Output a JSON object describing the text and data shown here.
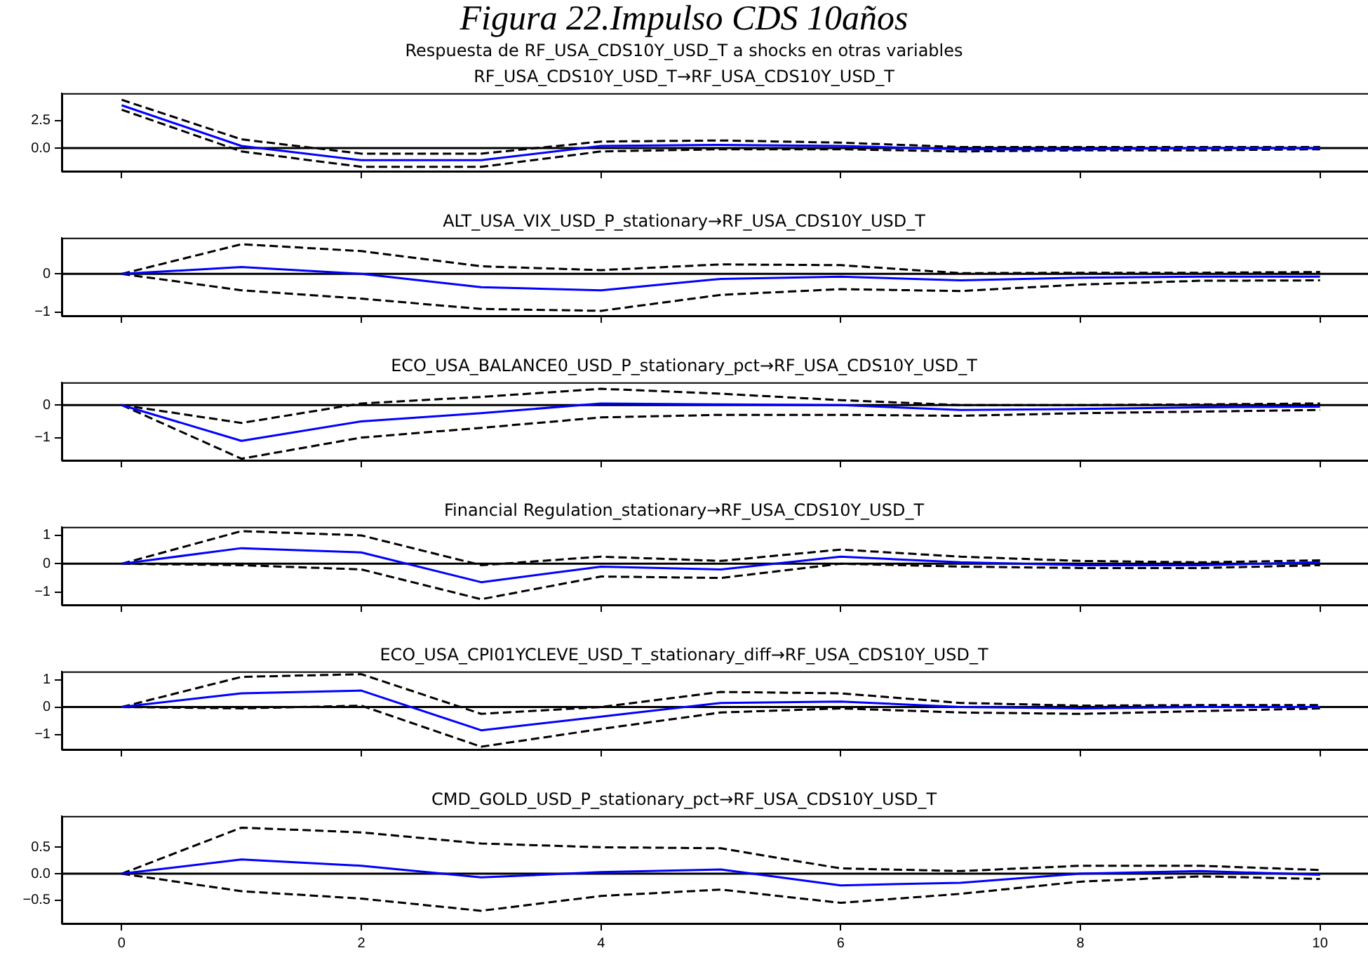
{
  "chart_data": [
    {
      "type": "line",
      "title": "RF_USA_CDS10Y_USD_T→RF_USA_CDS10Y_USD_T",
      "annotations": [
        "Figura 22.Impulso CDS 10años",
        "Respuesta de RF_USA_CDS10Y_USD_T a shocks en otras variables"
      ],
      "x": [
        0,
        1,
        2,
        3,
        4,
        5,
        6,
        7,
        8,
        9,
        10
      ],
      "xlim": [
        -0.5,
        10.4
      ],
      "xticks": [
        0,
        2,
        4,
        6,
        8,
        10
      ],
      "ylim": [
        -2.1,
        5.0
      ],
      "yticks": [
        {
          "value": 0,
          "label": "0.0"
        },
        {
          "value": 2.5,
          "label": "2.5"
        }
      ],
      "tick_labels": "y",
      "series": [
        {
          "color": "#0000ff",
          "line_style": "solid",
          "values": [
            3.9,
            0.2,
            -1.1,
            -1.1,
            0.2,
            0.3,
            0.2,
            -0.1,
            -0.1,
            0,
            0
          ]
        },
        {
          "color": "#000000",
          "line_style": "dashed",
          "values": [
            4.4,
            0.8,
            -0.5,
            -0.5,
            0.6,
            0.7,
            0.5,
            0.1,
            0.1,
            0.1,
            0.1
          ]
        },
        {
          "color": "#000000",
          "line_style": "dashed",
          "values": [
            3.5,
            -0.3,
            -1.7,
            -1.7,
            -0.3,
            -0.1,
            -0.1,
            -0.3,
            -0.2,
            -0.2,
            -0.1
          ]
        }
      ],
      "ref_lines": [
        {
          "axis": "y",
          "value": 0,
          "color": "#000000"
        }
      ]
    },
    {
      "type": "line",
      "title": "ALT_USA_VIX_USD_P_stationary→RF_USA_CDS10Y_USD_T",
      "x": [
        0,
        1,
        2,
        3,
        4,
        5,
        6,
        7,
        8,
        9,
        10
      ],
      "xlim": [
        -0.5,
        10.4
      ],
      "xticks": [
        0,
        2,
        4,
        6,
        8,
        10
      ],
      "ylim": [
        -1.1,
        0.95
      ],
      "yticks": [
        {
          "value": -1,
          "label": "−1"
        },
        {
          "value": 0,
          "label": "0"
        }
      ],
      "tick_labels": "y",
      "series": [
        {
          "color": "#0000ff",
          "line_style": "solid",
          "values": [
            0,
            0.18,
            0,
            -0.35,
            -0.43,
            -0.13,
            -0.07,
            -0.17,
            -0.1,
            -0.07,
            -0.07
          ]
        },
        {
          "color": "#000000",
          "line_style": "dashed",
          "values": [
            0,
            0.78,
            0.6,
            0.2,
            0.1,
            0.25,
            0.23,
            0.02,
            0.03,
            0.03,
            0.05
          ]
        },
        {
          "color": "#000000",
          "line_style": "dashed",
          "values": [
            0,
            -0.43,
            -0.65,
            -0.92,
            -0.97,
            -0.55,
            -0.4,
            -0.45,
            -0.28,
            -0.18,
            -0.17
          ]
        }
      ],
      "ref_lines": [
        {
          "axis": "y",
          "value": 0,
          "color": "#000000"
        }
      ]
    },
    {
      "type": "line",
      "title": "ECO_USA_BALANCE0_USD_P_stationary_pct→RF_USA_CDS10Y_USD_T",
      "x": [
        0,
        1,
        2,
        3,
        4,
        5,
        6,
        7,
        8,
        9,
        10
      ],
      "xlim": [
        -0.5,
        10.4
      ],
      "xticks": [
        0,
        2,
        4,
        6,
        8,
        10
      ],
      "ylim": [
        -1.7,
        0.7
      ],
      "yticks": [
        {
          "value": -1,
          "label": "−1"
        },
        {
          "value": 0,
          "label": "0"
        }
      ],
      "tick_labels": "y",
      "series": [
        {
          "color": "#0000ff",
          "line_style": "solid",
          "values": [
            0,
            -1.1,
            -0.5,
            -0.25,
            0.05,
            0.02,
            0,
            -0.15,
            -0.12,
            -0.07,
            -0.05
          ]
        },
        {
          "color": "#000000",
          "line_style": "dashed",
          "values": [
            0,
            -0.55,
            0.05,
            0.25,
            0.5,
            0.35,
            0.15,
            0,
            0,
            0.02,
            0.05
          ]
        },
        {
          "color": "#000000",
          "line_style": "dashed",
          "values": [
            0,
            -1.65,
            -1.0,
            -0.7,
            -0.38,
            -0.3,
            -0.3,
            -0.33,
            -0.25,
            -0.2,
            -0.15
          ]
        }
      ],
      "ref_lines": [
        {
          "axis": "y",
          "value": 0,
          "color": "#000000"
        }
      ]
    },
    {
      "type": "line",
      "title": "Financial Regulation_stationary→RF_USA_CDS10Y_USD_T",
      "x": [
        0,
        1,
        2,
        3,
        4,
        5,
        6,
        7,
        8,
        9,
        10
      ],
      "xlim": [
        -0.5,
        10.4
      ],
      "xticks": [
        0,
        2,
        4,
        6,
        8,
        10
      ],
      "ylim": [
        -1.45,
        1.3
      ],
      "yticks": [
        {
          "value": -1,
          "label": "−1"
        },
        {
          "value": 0,
          "label": "0"
        },
        1
      ],
      "tick_labels": "y",
      "series": [
        {
          "color": "#0000ff",
          "line_style": "solid",
          "values": [
            0,
            0.55,
            0.4,
            -0.65,
            -0.1,
            -0.2,
            0.25,
            0.05,
            -0.05,
            -0.05,
            0.05
          ]
        },
        {
          "color": "#000000",
          "line_style": "dashed",
          "values": [
            0,
            1.15,
            1.0,
            -0.05,
            0.25,
            0.1,
            0.5,
            0.25,
            0.1,
            0.05,
            0.12
          ]
        },
        {
          "color": "#000000",
          "line_style": "dashed",
          "values": [
            0,
            -0.05,
            -0.2,
            -1.25,
            -0.45,
            -0.5,
            0,
            -0.1,
            -0.15,
            -0.15,
            -0.05
          ]
        }
      ],
      "ref_lines": [
        {
          "axis": "y",
          "value": 0,
          "color": "#000000"
        }
      ]
    },
    {
      "type": "line",
      "title": "ECO_USA_CPI01YCLEVE_USD_T_stationary_diff→RF_USA_CDS10Y_USD_T",
      "x": [
        0,
        1,
        2,
        3,
        4,
        5,
        6,
        7,
        8,
        9,
        10
      ],
      "xlim": [
        -0.5,
        10.4
      ],
      "xticks": [
        0,
        2,
        4,
        6,
        8,
        10
      ],
      "ylim": [
        -1.55,
        1.3
      ],
      "yticks": [
        {
          "value": -1,
          "label": "−1"
        },
        {
          "value": 0,
          "label": "0"
        },
        1
      ],
      "tick_labels": "y",
      "series": [
        {
          "color": "#0000ff",
          "line_style": "solid",
          "values": [
            0,
            0.5,
            0.6,
            -0.85,
            -0.35,
            0.15,
            0.2,
            0,
            -0.05,
            0,
            0
          ]
        },
        {
          "color": "#000000",
          "line_style": "dashed",
          "values": [
            0,
            1.1,
            1.2,
            -0.25,
            0,
            0.55,
            0.5,
            0.15,
            0.05,
            0.07,
            0.07
          ]
        },
        {
          "color": "#000000",
          "line_style": "dashed",
          "values": [
            0,
            -0.05,
            0.05,
            -1.45,
            -0.8,
            -0.2,
            -0.05,
            -0.2,
            -0.25,
            -0.15,
            -0.05
          ]
        }
      ],
      "ref_lines": [
        {
          "axis": "y",
          "value": 0,
          "color": "#000000"
        }
      ]
    },
    {
      "type": "line",
      "title": "CMD_GOLD_USD_P_stationary_pct→RF_USA_CDS10Y_USD_T",
      "x": [
        0,
        1,
        2,
        3,
        4,
        5,
        6,
        7,
        8,
        9,
        10
      ],
      "xlim": [
        -0.5,
        10.4
      ],
      "xticks": [
        0,
        2,
        4,
        6,
        8,
        10
      ],
      "ylim": [
        -0.94,
        1.09
      ],
      "yticks": [
        {
          "value": -0.5,
          "label": "−0.5"
        },
        {
          "value": 0,
          "label": "0.0"
        },
        {
          "value": 0.5,
          "label": "0.5"
        }
      ],
      "series": [
        {
          "color": "#0000ff",
          "line_style": "solid",
          "values": [
            0,
            0.27,
            0.15,
            -0.07,
            0.03,
            0.08,
            -0.22,
            -0.17,
            0,
            0.05,
            -0.02
          ]
        },
        {
          "color": "#000000",
          "line_style": "dashed",
          "values": [
            0,
            0.87,
            0.78,
            0.57,
            0.5,
            0.48,
            0.1,
            0.05,
            0.15,
            0.15,
            0.07
          ]
        },
        {
          "color": "#000000",
          "line_style": "dashed",
          "values": [
            0,
            -0.33,
            -0.47,
            -0.7,
            -0.42,
            -0.3,
            -0.55,
            -0.38,
            -0.15,
            -0.05,
            -0.1
          ]
        }
      ],
      "ref_lines": [
        {
          "axis": "y",
          "value": 0,
          "color": "#000000"
        }
      ]
    }
  ]
}
